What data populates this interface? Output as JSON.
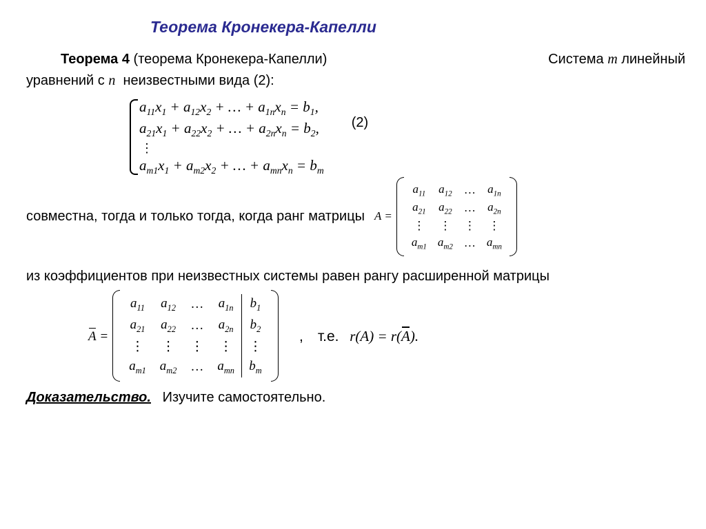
{
  "title": "Теорема Кронекера-Капелли",
  "theorem": {
    "label_bold": "Теорема 4",
    "paren": "(теорема Кронекера-Капелли)",
    "tail1": "Система",
    "m": "m",
    "tail2": "линейный",
    "line2a": "уравнений с",
    "n": "n",
    "line2b": "неизвестными вида (2):"
  },
  "system": {
    "row1": "a<sub>11</sub>x<sub>1</sub> + a<sub>12</sub>x<sub>2</sub> + … + a<sub>1n</sub>x<sub>n</sub> = b<sub>1</sub>,",
    "row2": "a<sub>21</sub>x<sub>1</sub> + a<sub>22</sub>x<sub>2</sub> + … + a<sub>2n</sub>x<sub>n</sub> = b<sub>2</sub>,",
    "rowm": "a<sub>m1</sub>x<sub>1</sub> + a<sub>m2</sub>x<sub>2</sub> + … + a<sub>mn</sub>x<sub>n</sub> = b<sub>m</sub>",
    "eqno": "(2)"
  },
  "iff_text": "совместна,  тогда и только тогда,  когда ранг матрицы",
  "matrixA": {
    "lead": "A =",
    "rows": [
      [
        "a<sub>11</sub>",
        "a<sub>12</sub>",
        "…",
        "a<sub>1n</sub>"
      ],
      [
        "a<sub>21</sub>",
        "a<sub>22</sub>",
        "…",
        "a<sub>2n</sub>"
      ],
      [
        "⋮",
        "⋮",
        "⋮",
        "⋮"
      ],
      [
        "a<sub>m1</sub>",
        "a<sub>m2</sub>",
        "…",
        "a<sub>mn</sub>"
      ]
    ]
  },
  "coeff_text": "из коэффициентов при неизвестных   системы равен рангу расширенной матрицы",
  "matrixAbar": {
    "lead_letter": "A",
    "rows": [
      [
        "a<sub>11</sub>",
        "a<sub>12</sub>",
        "…",
        "a<sub>1n</sub>",
        "b<sub>1</sub>"
      ],
      [
        "a<sub>21</sub>",
        "a<sub>22</sub>",
        "…",
        "a<sub>2n</sub>",
        "b<sub>2</sub>"
      ],
      [
        "⋮",
        "⋮",
        "⋮",
        "⋮",
        "⋮"
      ],
      [
        "a<sub>m1</sub>",
        "a<sub>m2</sub>",
        "…",
        "a<sub>mn</sub>",
        "b<sub>m</sub>"
      ]
    ]
  },
  "ie": {
    "comma": ",",
    "label": "т.е.",
    "eq1": "r(A) = r(",
    "Abar": "A",
    "eq2": ")."
  },
  "proof": {
    "label": "Доказательство.",
    "text": "Изучите самостоятельно."
  },
  "colors": {
    "title": "#2a2a90",
    "text": "#000000",
    "bg": "#ffffff"
  }
}
